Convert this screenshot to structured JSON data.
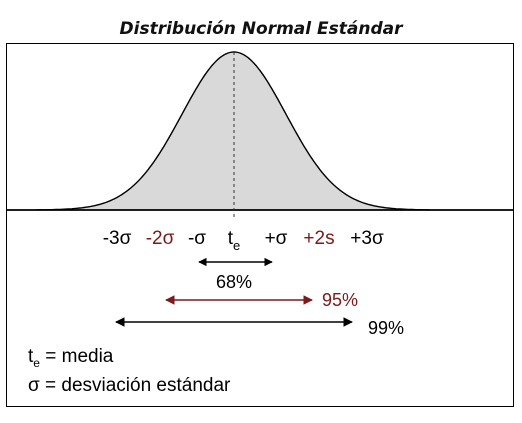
{
  "title": "Distribución Normal Estándar",
  "tick_labels": [
    {
      "text": "-3σ",
      "color": "#000000"
    },
    {
      "text": "-2σ",
      "color": "#7a1a1a"
    },
    {
      "text": "-σ",
      "color": "#000000"
    },
    {
      "text": "+σ",
      "color": "#000000"
    },
    {
      "text": "+2s",
      "color": "#7a1a1a"
    },
    {
      "text": "+3σ",
      "color": "#000000"
    }
  ],
  "center_label": {
    "main": "t",
    "sub": "e"
  },
  "intervals": [
    {
      "label": "68%",
      "color": "#000000",
      "span_sigma": 1
    },
    {
      "label": "95%",
      "color": "#7a1a1a",
      "span_sigma": 2
    },
    {
      "label": "99%",
      "color": "#000000",
      "span_sigma": 3
    }
  ],
  "legend": {
    "te_main": "t",
    "te_sub": "e",
    "te_text": " = media",
    "sigma_text": "σ = desviación estándar"
  },
  "colors": {
    "curve_fill": "#d9d9d9",
    "dark_red": "#7a1a1a"
  }
}
